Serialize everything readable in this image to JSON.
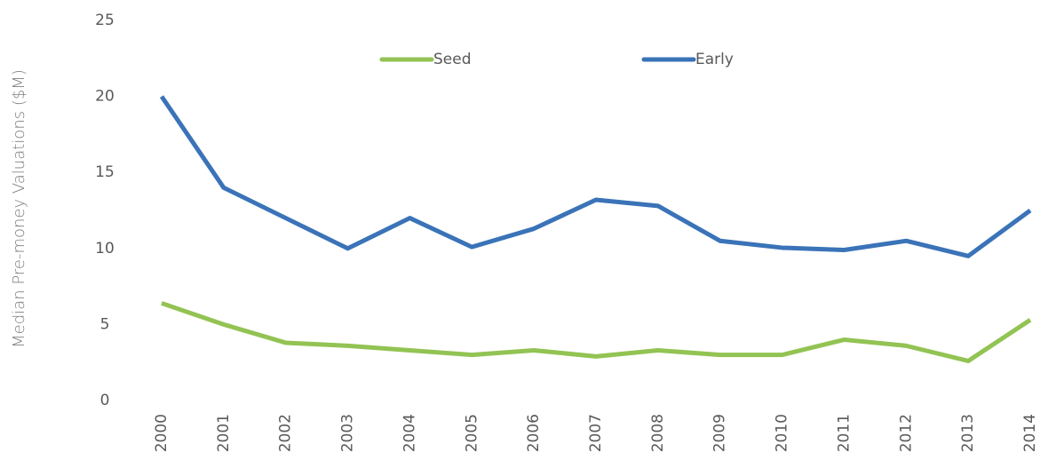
{
  "chart_data": {
    "type": "line",
    "y_label": "Median Pre-money Valuations ($M)",
    "x": [
      "2000",
      "2001",
      "2002",
      "2003",
      "2004",
      "2005",
      "2006",
      "2007",
      "2008",
      "2009",
      "2010",
      "2011",
      "2012",
      "2013",
      "2014"
    ],
    "series": [
      {
        "name": "Seed",
        "color": "#92c353",
        "values": [
          6.4,
          5.0,
          3.8,
          3.6,
          3.3,
          3.0,
          3.3,
          2.9,
          3.3,
          3.0,
          3.0,
          4.0,
          3.6,
          2.6,
          5.3
        ]
      },
      {
        "name": "Early",
        "color": "#3a73b8",
        "values": [
          20,
          14,
          12,
          10,
          12,
          10.1,
          11.3,
          13.2,
          12.8,
          10.5,
          10.05,
          9.9,
          10.5,
          9.5,
          12.5
        ]
      }
    ],
    "ylim": [
      0,
      25
    ],
    "yticks": [
      0,
      5,
      10,
      15,
      20,
      25
    ],
    "grid": false,
    "legend": "top"
  }
}
